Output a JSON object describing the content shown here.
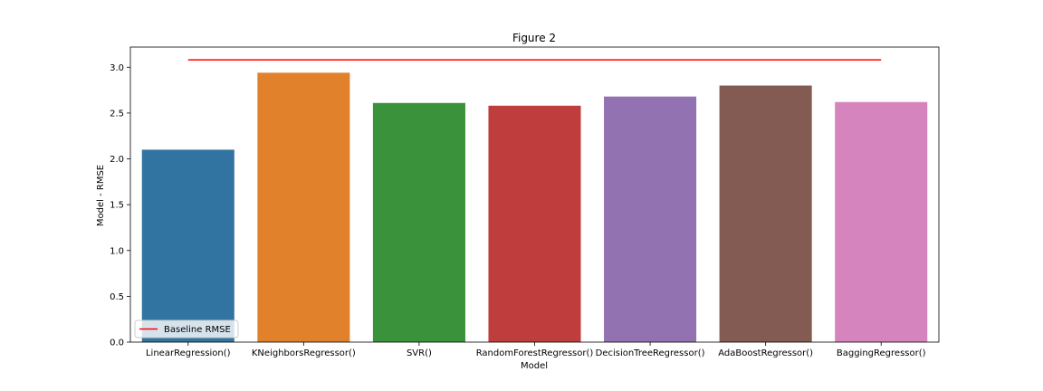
{
  "chart_data": {
    "type": "bar",
    "title": "Figure 2",
    "xlabel": "Model",
    "ylabel": "Model - RMSE",
    "categories": [
      "LinearRegression()",
      "KNeighborsRegressor()",
      "SVR()",
      "RandomForestRegressor()",
      "DecisionTreeRegressor()",
      "AdaBoostRegressor()",
      "BaggingRegressor()"
    ],
    "values": [
      2.1,
      2.94,
      2.61,
      2.58,
      2.68,
      2.8,
      2.62
    ],
    "colors": [
      "#3274a1",
      "#e1812c",
      "#3a923a",
      "#c03d3e",
      "#9372b2",
      "#845b53",
      "#d684bd"
    ],
    "ylim": [
      0,
      3.22
    ],
    "yticks": [
      "0.0",
      "0.5",
      "1.0",
      "1.5",
      "2.0",
      "2.5",
      "3.0"
    ],
    "grid": false,
    "baseline": {
      "name": "Baseline RMSE",
      "value": 3.08,
      "color": "#ff0000"
    },
    "legend": {
      "placement": "lower-left",
      "label": "Baseline RMSE"
    }
  }
}
